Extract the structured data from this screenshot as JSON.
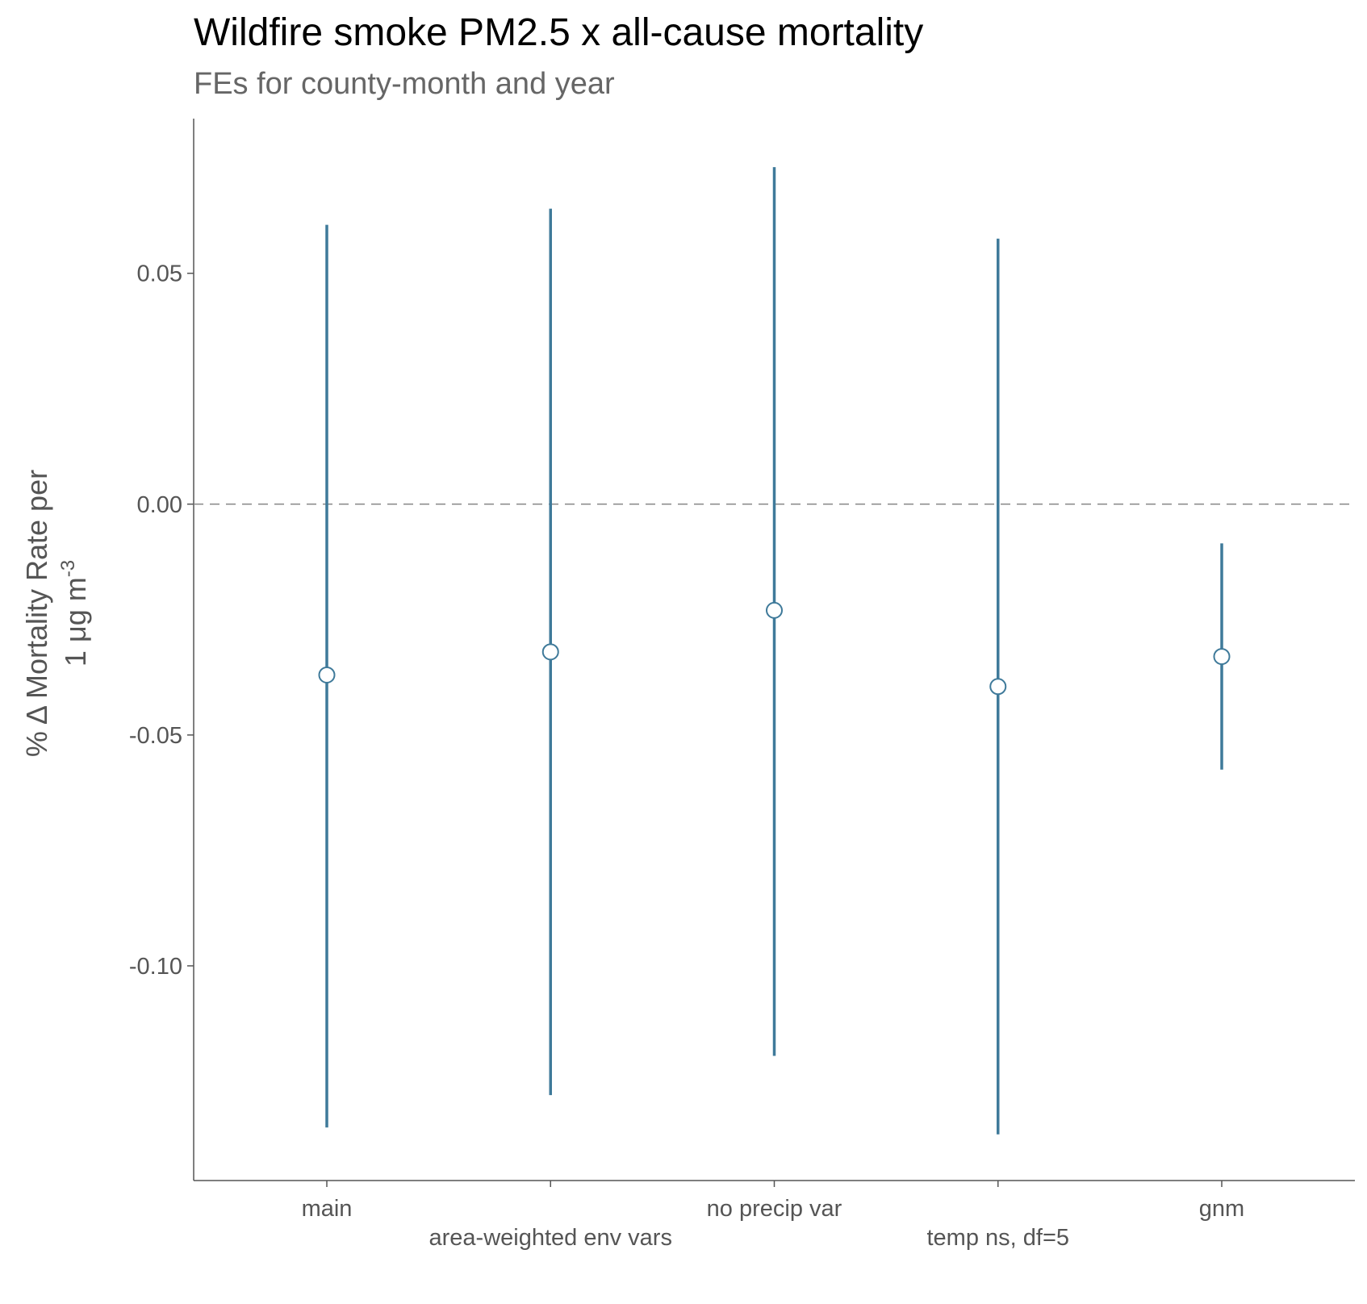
{
  "chart_data": {
    "type": "errorbar",
    "title": "Wildfire smoke PM2.5 x all-cause mortality",
    "subtitle": "FEs for county-month and year",
    "ylabel_line1": "% Δ  Mortality Rate per",
    "ylabel_line2_prefix": "1 μg m",
    "ylabel_line2_sup": "-3",
    "categories": [
      "main",
      "area-weighted env vars",
      "no precip var",
      "temp ns, df=5",
      "gnm"
    ],
    "estimates": [
      -0.037,
      -0.032,
      -0.023,
      -0.0395,
      -0.033
    ],
    "lower": [
      -0.135,
      -0.128,
      -0.1195,
      -0.1365,
      -0.0575
    ],
    "upper": [
      0.0605,
      0.064,
      0.073,
      0.0575,
      -0.0085
    ],
    "yticks": [
      0.05,
      0.0,
      -0.05,
      -0.1
    ],
    "ytick_labels": [
      "0.05",
      "0.00",
      "-0.05",
      "-0.10"
    ],
    "ylim": [
      -0.1465,
      0.0835
    ],
    "reference_line": 0,
    "colors": {
      "interval": "#3f7a9a",
      "point_fill": "#ffffff",
      "point_stroke": "#3f7a9a",
      "reference": "#888888",
      "axis": "#555555"
    }
  }
}
